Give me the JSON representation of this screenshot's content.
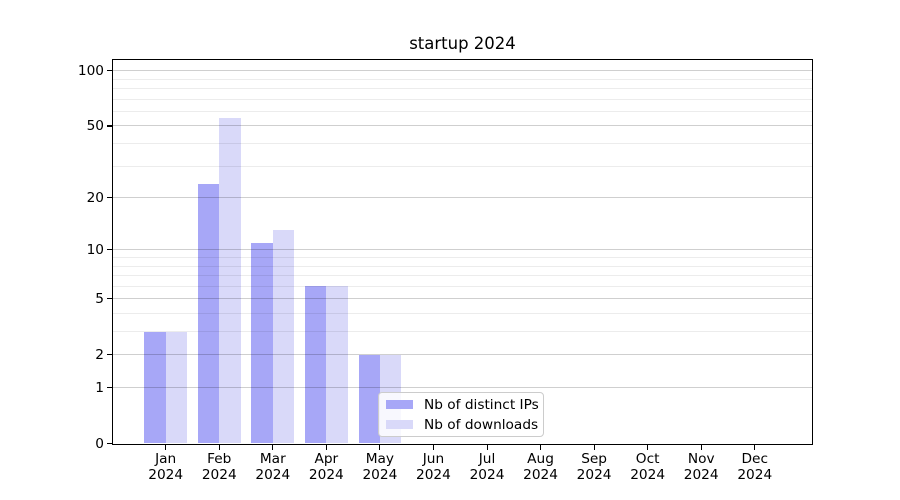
{
  "figure": {
    "background": "#ffffff"
  },
  "chart_data": {
    "type": "bar",
    "title": "startup 2024",
    "categories": [
      {
        "month": "Jan",
        "year": "2024"
      },
      {
        "month": "Feb",
        "year": "2024"
      },
      {
        "month": "Mar",
        "year": "2024"
      },
      {
        "month": "Apr",
        "year": "2024"
      },
      {
        "month": "May",
        "year": "2024"
      },
      {
        "month": "Jun",
        "year": "2024"
      },
      {
        "month": "Jul",
        "year": "2024"
      },
      {
        "month": "Aug",
        "year": "2024"
      },
      {
        "month": "Sep",
        "year": "2024"
      },
      {
        "month": "Oct",
        "year": "2024"
      },
      {
        "month": "Nov",
        "year": "2024"
      },
      {
        "month": "Dec",
        "year": "2024"
      }
    ],
    "series": [
      {
        "name": "Nb of distinct IPs",
        "color": "#a7a7f7",
        "values": [
          3,
          24,
          11,
          6,
          2,
          0,
          0,
          0,
          0,
          0,
          0,
          0
        ]
      },
      {
        "name": "Nb of downloads",
        "color": "#d9d9f9",
        "values": [
          3,
          55,
          13,
          6,
          2,
          0,
          0,
          0,
          0,
          0,
          0,
          0
        ]
      }
    ],
    "xlabel": "",
    "ylabel": "",
    "yscale": "log1p",
    "ylim": [
      0,
      100
    ],
    "y_major_ticks": [
      0,
      1,
      2,
      5,
      10,
      20,
      50,
      100
    ],
    "y_minor_ticks": [
      3,
      4,
      6,
      7,
      8,
      9,
      30,
      40,
      60,
      70,
      80,
      90
    ],
    "grid": true,
    "grid_above_bars": true,
    "legend_position": "lower-center",
    "colors": {
      "axis": "#000000",
      "text": "#000000",
      "major_grid": "#cdcdcd",
      "minor_grid": "#ececec",
      "legend_border": "#cccccc"
    }
  }
}
